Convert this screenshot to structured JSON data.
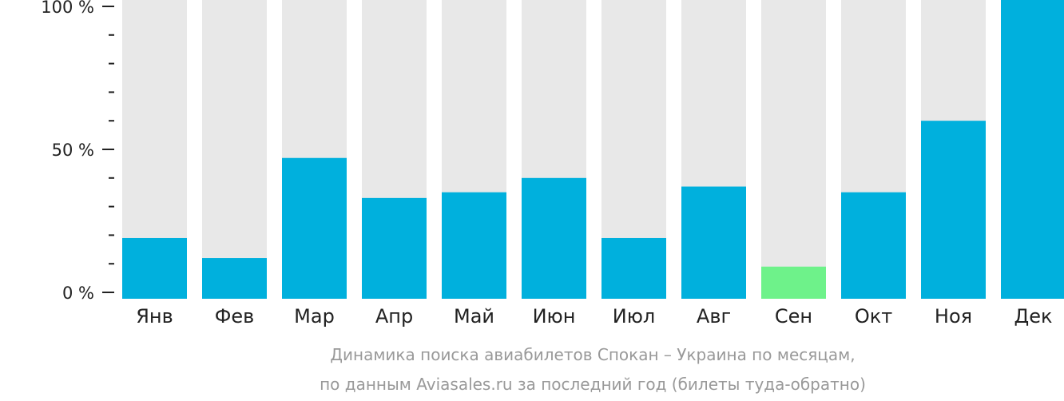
{
  "chart_data": {
    "type": "bar",
    "categories": [
      "Янв",
      "Фев",
      "Мар",
      "Апр",
      "Май",
      "Июн",
      "Июл",
      "Авг",
      "Сен",
      "Окт",
      "Ноя",
      "Дек"
    ],
    "values": [
      19,
      12,
      47,
      33,
      35,
      40,
      19,
      37,
      9,
      35,
      60,
      100
    ],
    "ylim": [
      0,
      100
    ],
    "yticks": [
      {
        "value": 0,
        "label": "0 %"
      },
      {
        "value": 50,
        "label": "50 %"
      },
      {
        "value": 100,
        "label": "100 %"
      }
    ],
    "minor_tick_step": 10,
    "caption_lines": [
      "Динамика поиска авиабилетов Спокан – Украина по месяцам,",
      "по данным Aviasales.ru за последний год (билеты туда-обратно)"
    ],
    "highlight_min_category": "Сен",
    "grid": false,
    "legend": "none",
    "colors": {
      "bar": "#00b0dd",
      "bar_min": "#6ef28a",
      "track": "#e8e8e8",
      "axis": "#222222",
      "caption": "#999999"
    }
  }
}
